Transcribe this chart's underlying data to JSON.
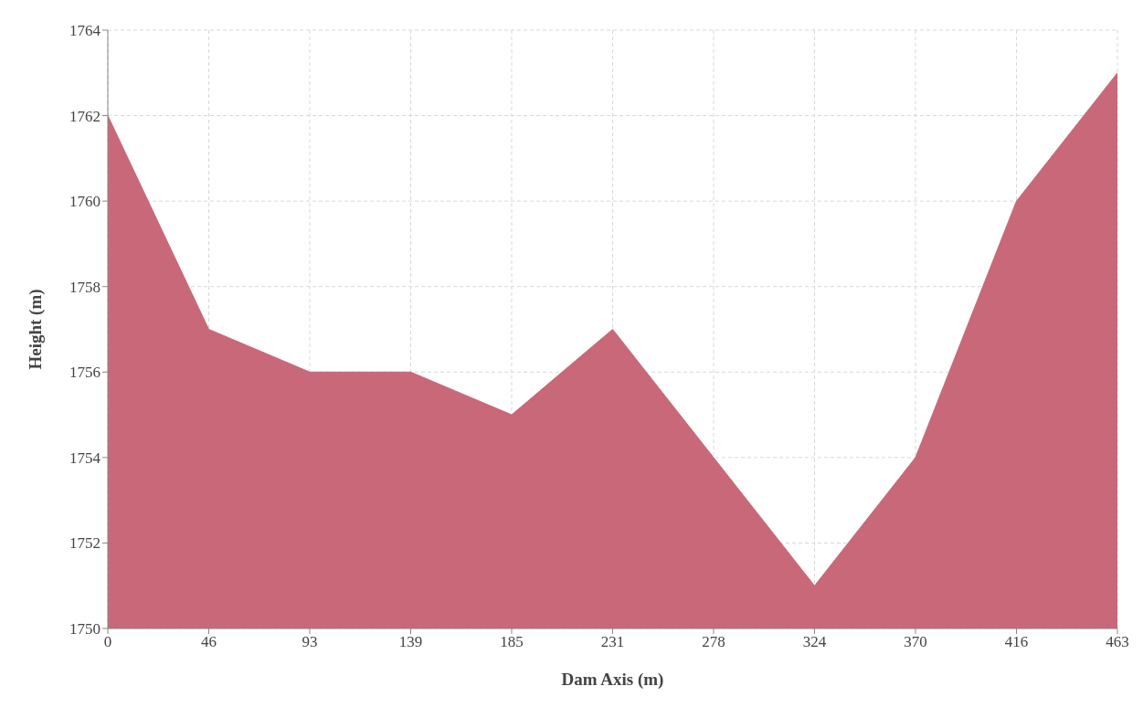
{
  "chart_data": {
    "type": "area",
    "xlabel": "Dam Axis (m)",
    "ylabel": "Height (m)",
    "categories": [
      "0",
      "46",
      "93",
      "139",
      "185",
      "231",
      "278",
      "324",
      "370",
      "416",
      "463"
    ],
    "series": [
      {
        "color": "#c86878",
        "values": [
          1762,
          1757,
          1756,
          1756,
          1755,
          1757,
          1754,
          1751,
          1754,
          1760,
          1763
        ]
      }
    ],
    "ylim": [
      1750,
      1764
    ],
    "yticks": [
      1750,
      1752,
      1754,
      1756,
      1758,
      1760,
      1762,
      1764
    ],
    "grid": true,
    "legend": false
  }
}
